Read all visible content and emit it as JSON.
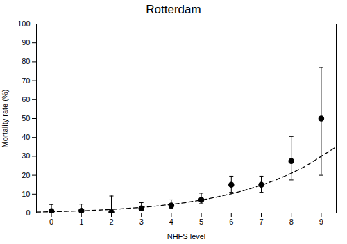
{
  "chart_data": {
    "type": "scatter",
    "title": "Rotterdam",
    "xlabel": "NHFS level",
    "ylabel": "Mortality rate (%)",
    "xlim": [
      -0.5,
      9.5
    ],
    "xticks": [
      0,
      1,
      2,
      3,
      4,
      5,
      6,
      7,
      8,
      9
    ],
    "ylim": [
      0,
      100
    ],
    "yticks": [
      0,
      10,
      20,
      30,
      40,
      50,
      60,
      70,
      80,
      90,
      100
    ],
    "grid": false,
    "series": [
      {
        "type": "line",
        "line_style": "dashed",
        "x": [
          -0.5,
          0,
          0.5,
          1,
          1.5,
          2,
          2.5,
          3,
          3.5,
          4,
          4.5,
          5,
          5.5,
          6,
          6.5,
          7,
          7.5,
          8,
          8.5,
          9,
          9.5
        ],
        "values": [
          0.5,
          0.7,
          0.9,
          1.2,
          1.5,
          1.9,
          2.4,
          3.0,
          3.7,
          4.6,
          5.6,
          6.9,
          8.4,
          10.2,
          12.3,
          14.7,
          17.6,
          21.0,
          25.0,
          30.0,
          35.0
        ]
      },
      {
        "type": "scatter",
        "marker": "circle",
        "x": [
          0,
          1,
          2,
          3,
          4,
          5,
          6,
          7,
          8,
          9
        ],
        "values": [
          1.0,
          1.2,
          0.5,
          2.5,
          4.0,
          7.0,
          15.0,
          15.0,
          27.5,
          50.0
        ],
        "yerr_lower": [
          1.0,
          1.0,
          0.5,
          1.0,
          1.5,
          2.0,
          4.0,
          4.0,
          10.0,
          30.0
        ],
        "yerr_upper": [
          3.5,
          3.5,
          8.5,
          3.0,
          3.0,
          3.5,
          4.5,
          4.5,
          13.0,
          27.0
        ]
      }
    ]
  }
}
